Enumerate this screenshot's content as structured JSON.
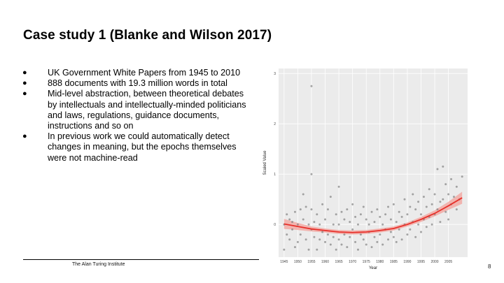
{
  "slide": {
    "title": "Case study 1 (Blanke and Wilson 2017)",
    "bullets": [
      "UK Government White Papers from 1945 to 2010",
      "888 documents with 19.3 million words in total",
      "Mid-level abstraction, between theoretical debates by intellectuals and intellectually-minded politicians and laws, regulations, guidance documents, instructions and so on",
      "In previous work we could automatically detect changes in meaning, but the epochs themselves were not machine-read"
    ],
    "bullet_glyph": "●",
    "footer": "The Alan Turing Institute",
    "page_number": "8"
  },
  "chart_data": {
    "type": "scatter",
    "xlabel": "Year",
    "ylabel": "Scaled Value",
    "x_ticks": [
      1945,
      1950,
      1955,
      1960,
      1965,
      1970,
      1975,
      1980,
      1985,
      1990,
      1995,
      2000,
      2005
    ],
    "y_ticks": [
      0,
      1,
      2,
      3
    ],
    "xlim": [
      1943,
      2012
    ],
    "ylim": [
      -0.65,
      3.1
    ],
    "background": "#ebebeb",
    "point_color": "#7a7a7a",
    "trend_color": "#e8302a",
    "band_color": "#f3a6a0",
    "trend": {
      "x": [
        1945,
        1950,
        1955,
        1960,
        1965,
        1970,
        1975,
        1980,
        1985,
        1990,
        1995,
        2000,
        2005,
        2010
      ],
      "y": [
        0.01,
        -0.04,
        -0.09,
        -0.12,
        -0.15,
        -0.16,
        -0.15,
        -0.12,
        -0.08,
        0.0,
        0.1,
        0.22,
        0.37,
        0.53
      ],
      "band_halfwidth": [
        0.1,
        0.07,
        0.05,
        0.04,
        0.04,
        0.04,
        0.04,
        0.04,
        0.04,
        0.04,
        0.05,
        0.06,
        0.08,
        0.12
      ]
    },
    "points": [
      [
        1945,
        -0.5
      ],
      [
        1945,
        0.0
      ],
      [
        1946,
        0.2
      ],
      [
        1946,
        -0.2
      ],
      [
        1947,
        -0.3
      ],
      [
        1947,
        0.1
      ],
      [
        1948,
        0.05
      ],
      [
        1948,
        -0.1
      ],
      [
        1949,
        0.25
      ],
      [
        1949,
        -0.45
      ],
      [
        1950,
        0.0
      ],
      [
        1950,
        -0.35
      ],
      [
        1951,
        0.3
      ],
      [
        1951,
        -0.2
      ],
      [
        1952,
        0.6
      ],
      [
        1952,
        0.1
      ],
      [
        1953,
        -0.3
      ],
      [
        1953,
        0.35
      ],
      [
        1954,
        -0.5
      ],
      [
        1954,
        0.0
      ],
      [
        1955,
        2.75
      ],
      [
        1955,
        1.0
      ],
      [
        1955,
        0.3
      ],
      [
        1955,
        -0.1
      ],
      [
        1956,
        0.05
      ],
      [
        1956,
        -0.25
      ],
      [
        1957,
        0.2
      ],
      [
        1957,
        -0.5
      ],
      [
        1958,
        0.0
      ],
      [
        1958,
        -0.3
      ],
      [
        1959,
        0.4
      ],
      [
        1959,
        -0.15
      ],
      [
        1960,
        -0.35
      ],
      [
        1960,
        0.1
      ],
      [
        1961,
        0.3
      ],
      [
        1961,
        -0.2
      ],
      [
        1962,
        0.55
      ],
      [
        1962,
        -0.4
      ],
      [
        1963,
        0.0
      ],
      [
        1963,
        -0.25
      ],
      [
        1964,
        0.2
      ],
      [
        1964,
        -0.5
      ],
      [
        1965,
        0.75
      ],
      [
        1965,
        0.0
      ],
      [
        1965,
        -0.3
      ],
      [
        1966,
        0.25
      ],
      [
        1966,
        -0.4
      ],
      [
        1967,
        0.1
      ],
      [
        1967,
        -0.2
      ],
      [
        1968,
        0.3
      ],
      [
        1968,
        -0.45
      ],
      [
        1969,
        0.05
      ],
      [
        1969,
        -0.25
      ],
      [
        1970,
        0.4
      ],
      [
        1970,
        -0.1
      ],
      [
        1971,
        0.15
      ],
      [
        1971,
        -0.35
      ],
      [
        1972,
        0.0
      ],
      [
        1972,
        -0.5
      ],
      [
        1973,
        0.2
      ],
      [
        1973,
        -0.2
      ],
      [
        1974,
        0.35
      ],
      [
        1974,
        -0.3
      ],
      [
        1975,
        0.1
      ],
      [
        1975,
        -0.4
      ],
      [
        1976,
        0.0
      ],
      [
        1976,
        -0.15
      ],
      [
        1977,
        0.25
      ],
      [
        1977,
        -0.45
      ],
      [
        1978,
        0.05
      ],
      [
        1978,
        -0.25
      ],
      [
        1979,
        0.3
      ],
      [
        1979,
        -0.35
      ],
      [
        1980,
        0.15
      ],
      [
        1980,
        -0.2
      ],
      [
        1981,
        0.0
      ],
      [
        1981,
        -0.4
      ],
      [
        1982,
        0.2
      ],
      [
        1982,
        -0.1
      ],
      [
        1983,
        0.35
      ],
      [
        1983,
        -0.3
      ],
      [
        1984,
        0.1
      ],
      [
        1984,
        -0.15
      ],
      [
        1985,
        0.4
      ],
      [
        1985,
        -0.25
      ],
      [
        1986,
        0.05
      ],
      [
        1986,
        -0.35
      ],
      [
        1987,
        0.25
      ],
      [
        1987,
        -0.1
      ],
      [
        1988,
        0.15
      ],
      [
        1988,
        -0.3
      ],
      [
        1989,
        0.5
      ],
      [
        1989,
        0.0
      ],
      [
        1990,
        0.2
      ],
      [
        1990,
        -0.2
      ],
      [
        1991,
        0.35
      ],
      [
        1991,
        -0.1
      ],
      [
        1992,
        0.6
      ],
      [
        1992,
        0.05
      ],
      [
        1993,
        0.3
      ],
      [
        1993,
        -0.25
      ],
      [
        1994,
        0.45
      ],
      [
        1994,
        0.0
      ],
      [
        1995,
        0.2
      ],
      [
        1995,
        -0.15
      ],
      [
        1996,
        0.55
      ],
      [
        1996,
        0.1
      ],
      [
        1997,
        0.35
      ],
      [
        1997,
        -0.05
      ],
      [
        1998,
        0.7
      ],
      [
        1998,
        0.15
      ],
      [
        1999,
        0.4
      ],
      [
        1999,
        0.0
      ],
      [
        2000,
        0.6
      ],
      [
        2000,
        0.2
      ],
      [
        2001,
        1.1
      ],
      [
        2001,
        0.3
      ],
      [
        2002,
        0.45
      ],
      [
        2002,
        0.05
      ],
      [
        2003,
        1.15
      ],
      [
        2003,
        0.5
      ],
      [
        2004,
        0.8
      ],
      [
        2004,
        0.25
      ],
      [
        2005,
        0.6
      ],
      [
        2005,
        0.1
      ],
      [
        2006,
        0.9
      ],
      [
        2006,
        0.4
      ],
      [
        2007,
        0.55
      ],
      [
        2008,
        0.75
      ],
      [
        2008,
        0.3
      ],
      [
        2009,
        0.5
      ],
      [
        2010,
        0.95
      ]
    ]
  }
}
